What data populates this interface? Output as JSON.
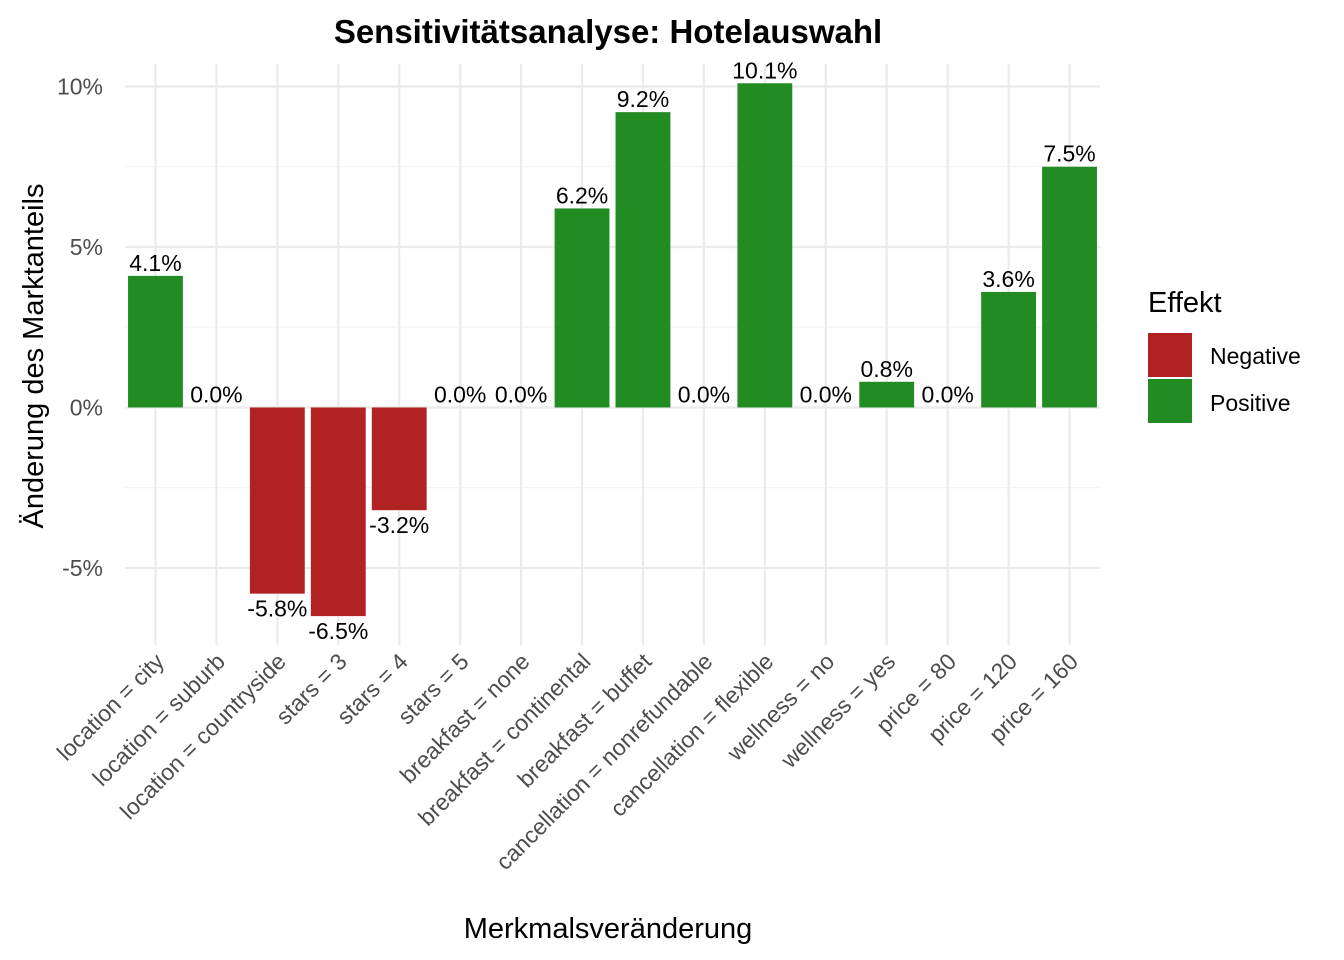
{
  "chart_data": {
    "type": "bar",
    "title": "Sensitivitätsanalyse: Hotelauswahl",
    "xlabel": "Merkmalsveränderung",
    "ylabel": "Änderung des Marktanteils",
    "categories": [
      "location = city",
      "location = suburb",
      "location = countryside",
      "stars = 3",
      "stars = 4",
      "stars = 5",
      "breakfast = none",
      "breakfast = continental",
      "breakfast = buffet",
      "cancellation = nonrefundable",
      "cancellation = flexible",
      "wellness = no",
      "wellness = yes",
      "price = 80",
      "price = 120",
      "price = 160"
    ],
    "values": [
      4.1,
      0.0,
      -5.8,
      -6.5,
      -3.2,
      0.0,
      0.0,
      6.2,
      9.2,
      0.0,
      10.1,
      0.0,
      0.8,
      0.0,
      3.6,
      7.5
    ],
    "labels": [
      "4.1%",
      "0.0%",
      "-5.8%",
      "-6.5%",
      "-3.2%",
      "0.0%",
      "0.0%",
      "6.2%",
      "9.2%",
      "0.0%",
      "10.1%",
      "0.0%",
      "0.8%",
      "0.0%",
      "3.6%",
      "7.5%"
    ],
    "effects": [
      "Positive",
      "Positive",
      "Negative",
      "Negative",
      "Negative",
      "Positive",
      "Positive",
      "Positive",
      "Positive",
      "Positive",
      "Positive",
      "Positive",
      "Positive",
      "Positive",
      "Positive",
      "Positive"
    ],
    "ylim": [
      -7.4,
      10.7
    ],
    "yticks": [
      -5,
      0,
      5,
      10
    ],
    "ytick_labels": [
      "-5%",
      "0%",
      "5%",
      "10%"
    ],
    "grid": true,
    "legend": {
      "title": "Effekt",
      "position": "right",
      "entries": [
        {
          "name": "Negative",
          "color": "#b22222"
        },
        {
          "name": "Positive",
          "color": "#228b22"
        }
      ]
    }
  }
}
